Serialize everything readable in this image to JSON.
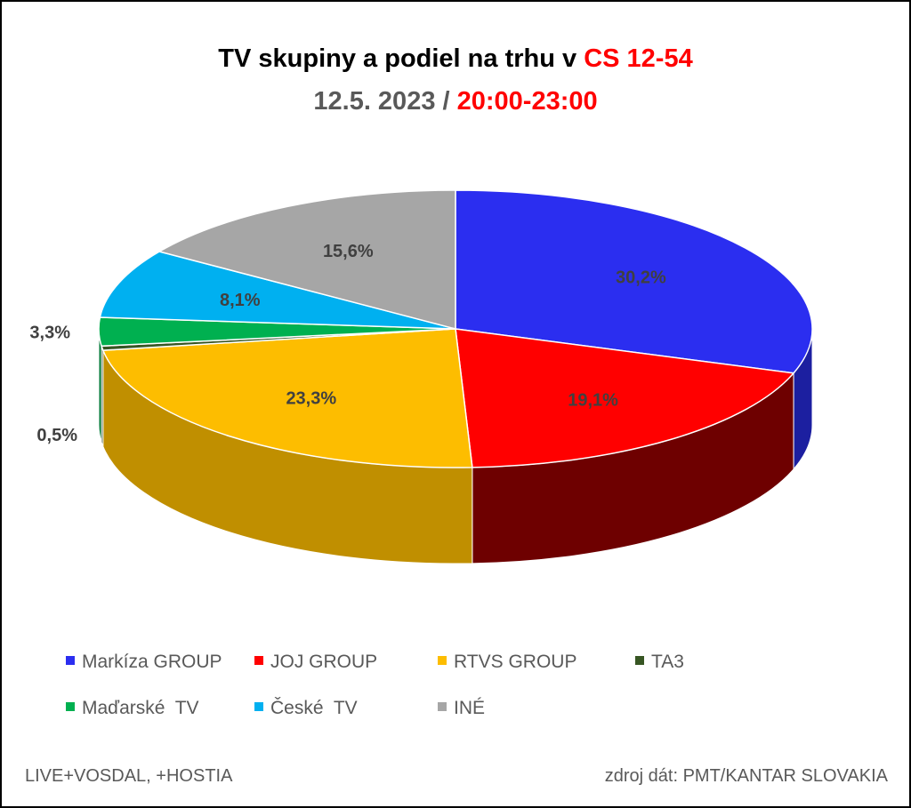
{
  "title": {
    "line1_main": "TV skupiny a podiel na trhu v ",
    "line1_highlight": "CS 12-54",
    "line2_date": "12.5. 2023 / ",
    "line2_time": "20:00-23:00"
  },
  "chart_data": {
    "type": "pie",
    "style": "3d",
    "start": "12 o'clock",
    "direction": "clockwise",
    "slices": [
      {
        "name": "Markíza GROUP",
        "value": 30.2,
        "label": "30,2%",
        "color": "#2b2ef0",
        "side_color": "#1c1fa0"
      },
      {
        "name": "JOJ GROUP",
        "value": 19.1,
        "label": "19,1%",
        "color": "#ff0000",
        "side_color": "#6e0000"
      },
      {
        "name": "RTVS GROUP",
        "value": 23.3,
        "label": "23,3%",
        "color": "#fdbd00",
        "side_color": "#c08f00"
      },
      {
        "name": "TA3",
        "value": 0.5,
        "label": "0,5%",
        "color": "#375623",
        "side_color": "#243a17"
      },
      {
        "name": "Maďarské  TV",
        "value": 3.3,
        "label": "3,3%",
        "color": "#00b050",
        "side_color": "#007a37"
      },
      {
        "name": "České  TV",
        "value": 8.1,
        "label": "8,1%",
        "color": "#00b0f0",
        "side_color": "#0077a3"
      },
      {
        "name": "INÉ",
        "value": 15.6,
        "label": "15,6%",
        "color": "#a6a6a6",
        "side_color": "#707070"
      }
    ]
  },
  "legend": {
    "row1": [
      "Markíza GROUP",
      "JOJ GROUP",
      "RTVS GROUP",
      "TA3"
    ],
    "row2": [
      "Maďarské  TV",
      "České  TV",
      "INÉ"
    ]
  },
  "footer": {
    "left": "LIVE+VOSDAL, +HOSTIA",
    "right": "zdroj dát: PMT/KANTAR SLOVAKIA"
  }
}
